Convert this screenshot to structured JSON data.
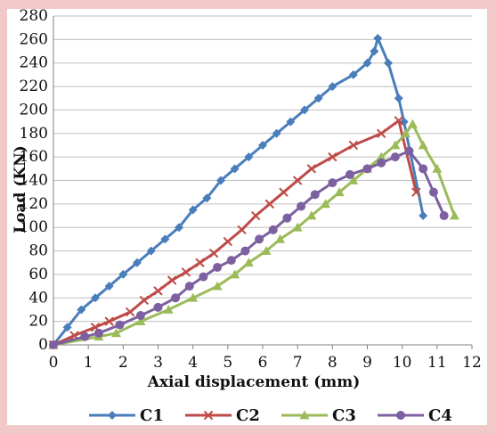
{
  "chart_data": {
    "type": "line",
    "title": "",
    "xlabel": "Axial displacement (mm)",
    "ylabel": "Load (KN)",
    "xlim": [
      0,
      12
    ],
    "ylim": [
      0,
      280
    ],
    "x_ticks": [
      "0",
      "1",
      "2",
      "3",
      "4",
      "5",
      "6",
      "7",
      "8",
      "9",
      "10",
      "11",
      "12"
    ],
    "y_ticks": [
      "0",
      "20",
      "40",
      "60",
      "80",
      "100",
      "120",
      "140",
      "160",
      "180",
      "200",
      "220",
      "240",
      "260",
      "280"
    ],
    "grid": true,
    "legend": "bottom",
    "colors": {
      "background": "#f2c9c9",
      "plot_bg": "#ffffff",
      "grid": "#bfbfbf"
    },
    "series": [
      {
        "name": "C1",
        "color": "#4a7ebb",
        "marker": "diamond",
        "points": [
          [
            0,
            0
          ],
          [
            0.4,
            15
          ],
          [
            0.8,
            30
          ],
          [
            1.2,
            40
          ],
          [
            1.6,
            50
          ],
          [
            2.0,
            60
          ],
          [
            2.4,
            70
          ],
          [
            2.8,
            80
          ],
          [
            3.2,
            90
          ],
          [
            3.6,
            100
          ],
          [
            4.0,
            115
          ],
          [
            4.4,
            125
          ],
          [
            4.8,
            140
          ],
          [
            5.2,
            150
          ],
          [
            5.6,
            160
          ],
          [
            6.0,
            170
          ],
          [
            6.4,
            180
          ],
          [
            6.8,
            190
          ],
          [
            7.2,
            200
          ],
          [
            7.6,
            210
          ],
          [
            8.0,
            220
          ],
          [
            8.6,
            230
          ],
          [
            9.0,
            240
          ],
          [
            9.2,
            250
          ],
          [
            9.3,
            261
          ],
          [
            9.6,
            240
          ],
          [
            9.9,
            210
          ],
          [
            10.05,
            190
          ],
          [
            10.6,
            110
          ]
        ]
      },
      {
        "name": "C2",
        "color": "#be4b48",
        "marker": "x",
        "points": [
          [
            0,
            0
          ],
          [
            0.6,
            8
          ],
          [
            1.2,
            15
          ],
          [
            1.6,
            20
          ],
          [
            2.2,
            28
          ],
          [
            2.6,
            38
          ],
          [
            3.0,
            46
          ],
          [
            3.4,
            55
          ],
          [
            3.8,
            62
          ],
          [
            4.2,
            70
          ],
          [
            4.6,
            78
          ],
          [
            5.0,
            88
          ],
          [
            5.4,
            98
          ],
          [
            5.8,
            110
          ],
          [
            6.2,
            120
          ],
          [
            6.6,
            130
          ],
          [
            7.0,
            140
          ],
          [
            7.4,
            150
          ],
          [
            8.0,
            160
          ],
          [
            8.6,
            170
          ],
          [
            9.4,
            180
          ],
          [
            9.9,
            191
          ],
          [
            10.4,
            130
          ]
        ]
      },
      {
        "name": "C3",
        "color": "#9bbb59",
        "marker": "triangle",
        "points": [
          [
            0,
            0
          ],
          [
            1.3,
            7
          ],
          [
            1.8,
            10
          ],
          [
            2.5,
            20
          ],
          [
            3.3,
            30
          ],
          [
            4.0,
            40
          ],
          [
            4.7,
            50
          ],
          [
            5.2,
            60
          ],
          [
            5.6,
            70
          ],
          [
            6.1,
            80
          ],
          [
            6.5,
            90
          ],
          [
            7.0,
            100
          ],
          [
            7.4,
            110
          ],
          [
            7.8,
            120
          ],
          [
            8.2,
            130
          ],
          [
            8.6,
            140
          ],
          [
            9.0,
            150
          ],
          [
            9.4,
            160
          ],
          [
            9.8,
            170
          ],
          [
            10.1,
            180
          ],
          [
            10.3,
            188
          ],
          [
            10.6,
            170
          ],
          [
            11.0,
            150
          ],
          [
            11.5,
            110
          ]
        ]
      },
      {
        "name": "C4",
        "color": "#7d60a0",
        "marker": "circle",
        "points": [
          [
            0,
            0
          ],
          [
            0.9,
            7
          ],
          [
            1.3,
            10
          ],
          [
            1.9,
            17
          ],
          [
            2.5,
            25
          ],
          [
            3.0,
            32
          ],
          [
            3.5,
            40
          ],
          [
            3.9,
            50
          ],
          [
            4.3,
            58
          ],
          [
            4.7,
            66
          ],
          [
            5.1,
            72
          ],
          [
            5.5,
            80
          ],
          [
            5.9,
            90
          ],
          [
            6.3,
            98
          ],
          [
            6.7,
            108
          ],
          [
            7.1,
            118
          ],
          [
            7.5,
            128
          ],
          [
            8.0,
            138
          ],
          [
            8.5,
            145
          ],
          [
            9.0,
            150
          ],
          [
            9.4,
            155
          ],
          [
            9.8,
            160
          ],
          [
            10.2,
            165
          ],
          [
            10.6,
            150
          ],
          [
            10.9,
            130
          ],
          [
            11.2,
            110
          ]
        ]
      }
    ]
  }
}
